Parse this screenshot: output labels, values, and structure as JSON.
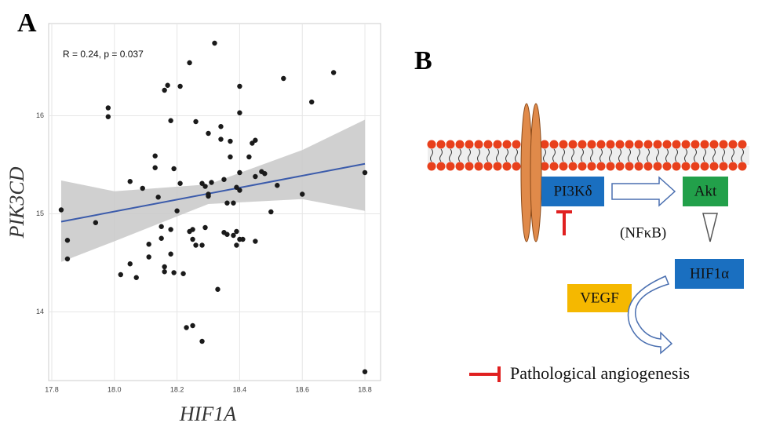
{
  "panel_a_label": "A",
  "chart_data": {
    "type": "scatter",
    "annotation": "R = 0.24, p = 0.037",
    "x_label": "HIF1A",
    "y_label": "PIK3CD",
    "xlim": [
      17.79,
      18.85
    ],
    "ylim": [
      13.3,
      16.94
    ],
    "xticks": [
      17.8,
      {
        "value": 18,
        "label": "18.0"
      },
      18.2,
      18.4,
      18.6,
      18.8
    ],
    "yticks": [
      14,
      15,
      16
    ],
    "grid": true,
    "color": "#1a1a1a",
    "x": [
      17.83,
      17.85,
      17.85,
      17.94,
      17.98,
      17.98,
      18.02,
      18.05,
      18.05,
      18.07,
      18.09,
      18.11,
      18.11,
      18.13,
      18.13,
      18.14,
      18.15,
      18.15,
      18.16,
      18.16,
      18.16,
      18.17,
      18.18,
      18.18,
      18.18,
      18.19,
      18.19,
      18.2,
      18.21,
      18.21,
      18.22,
      18.23,
      18.24,
      18.24,
      18.25,
      18.25,
      18.25,
      18.26,
      18.26,
      18.28,
      18.28,
      18.28,
      18.29,
      18.29,
      18.3,
      18.3,
      18.3,
      18.31,
      18.32,
      18.33,
      18.34,
      18.34,
      18.35,
      18.35,
      18.36,
      18.36,
      18.37,
      18.37,
      18.38,
      18.38,
      18.39,
      18.39,
      18.39,
      18.4,
      18.4,
      18.4,
      18.4,
      18.4,
      18.41,
      18.43,
      18.44,
      18.45,
      18.45,
      18.45,
      18.47,
      18.48,
      18.5,
      18.52,
      18.54,
      18.6,
      18.63,
      18.7,
      18.8,
      18.8
    ],
    "values": [
      15.04,
      14.73,
      14.54,
      14.91,
      16.08,
      15.99,
      14.38,
      14.49,
      15.33,
      14.35,
      15.26,
      14.56,
      14.69,
      15.47,
      15.59,
      15.17,
      14.87,
      14.75,
      14.41,
      14.46,
      16.26,
      16.31,
      15.95,
      14.84,
      14.59,
      14.4,
      15.46,
      15.03,
      16.3,
      15.31,
      14.39,
      13.84,
      14.82,
      16.54,
      14.74,
      13.86,
      14.84,
      15.94,
      14.68,
      15.31,
      14.68,
      13.7,
      15.28,
      14.86,
      15.2,
      15.82,
      15.18,
      15.32,
      16.74,
      14.23,
      15.76,
      15.89,
      14.81,
      15.35,
      15.11,
      14.79,
      15.74,
      15.58,
      14.78,
      15.11,
      15.27,
      14.68,
      14.82,
      15.42,
      16.3,
      16.03,
      15.24,
      14.74,
      14.74,
      15.58,
      15.72,
      15.75,
      15.38,
      14.72,
      15.43,
      15.41,
      15.02,
      15.29,
      16.38,
      15.2,
      16.14,
      16.44,
      15.42,
      13.39
    ],
    "fit": {
      "color": "#3b5bab",
      "x": [
        17.83,
        18.8
      ],
      "y": [
        14.92,
        15.51
      ]
    },
    "band": {
      "color": "#c8c8c8",
      "x": [
        17.83,
        18.0,
        18.3,
        18.6,
        18.8
      ],
      "upper": [
        15.34,
        15.23,
        15.3,
        15.65,
        15.96
      ],
      "lower": [
        14.51,
        14.72,
        15.1,
        15.15,
        15.03
      ]
    }
  },
  "panel_b": {
    "label": "B",
    "pi3k": "PI3Kδ",
    "akt": "Akt",
    "nfkb": "(NFκB)",
    "hif": "HIF1α",
    "vegf": "VEGF",
    "outcome": "Pathological angiogenesis"
  }
}
